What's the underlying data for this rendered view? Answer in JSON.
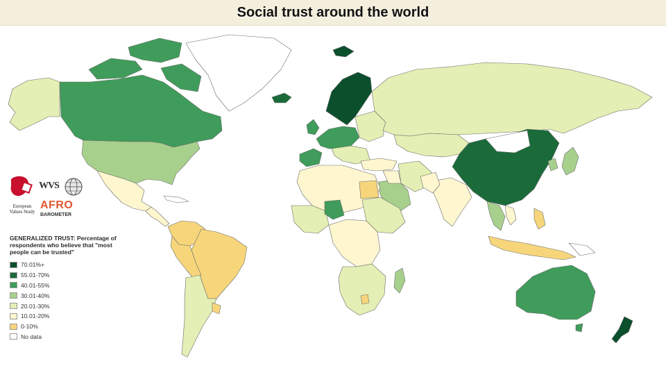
{
  "title": "Social trust around the world",
  "logos": {
    "evs": "European Values Study",
    "wvs": "WVS",
    "afro": "AFRO",
    "afro_sub": "BAROMETER"
  },
  "legend": {
    "title": "GENERALIZED TRUST: Percentage of respondents who believe that \"most people can be trusted\"",
    "items": [
      {
        "label": "70.01%+",
        "color": "#0b4f2c"
      },
      {
        "label": "55.01-70%",
        "color": "#1b6b3a"
      },
      {
        "label": "40.01-55%",
        "color": "#3f9c5a"
      },
      {
        "label": "30.01-40%",
        "color": "#a8d08d"
      },
      {
        "label": "20.01-30%",
        "color": "#e3efb4"
      },
      {
        "label": "10.01-20%",
        "color": "#fdf6cf"
      },
      {
        "label": "0-10%",
        "color": "#f7d67b"
      },
      {
        "label": "No data",
        "color": "#ffffff"
      }
    ]
  }
}
